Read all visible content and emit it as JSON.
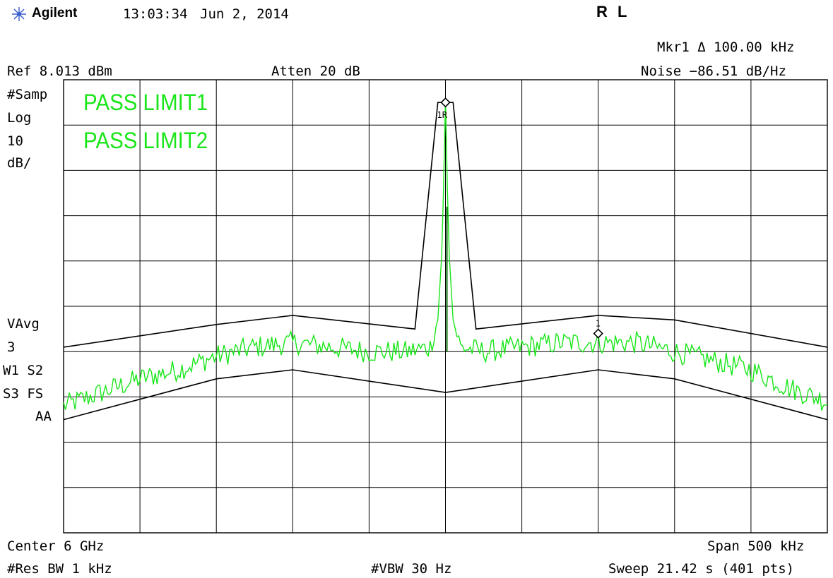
{
  "header": {
    "brand": "Agilent",
    "time": "13:03:34",
    "date": "Jun 2, 2014",
    "mode": "R L"
  },
  "marker": {
    "line1": "Mkr1 Δ  100.00 kHz",
    "line2": "Noise  −86.51 dB/Hz",
    "label_peak": "1R",
    "label_delta": "1"
  },
  "settings": {
    "ref": "Ref 8.013 dBm",
    "atten": "Atten 20 dB",
    "samp": "#Samp",
    "log": "Log",
    "scale_value": "10",
    "scale_unit": "dB/",
    "vavg": "VAvg",
    "vavg_count": "3",
    "w1s2": "W1  S2",
    "s3fs": "S3 FS",
    "aa": "AA"
  },
  "status": {
    "limit1": "PASS LIMIT1",
    "limit2": "PASS LIMIT2"
  },
  "footer": {
    "center": "Center 6 GHz",
    "span": "Span 500 kHz",
    "rbw": "#Res BW 1 kHz",
    "vbw": "#VBW 30 Hz",
    "sweep": "Sweep 21.42 s (401 pts)"
  },
  "colors": {
    "trace": "#19e619",
    "grid": "#000000",
    "limit_line": "#000000"
  },
  "chart_data": {
    "type": "line",
    "x_unit": "kHz offset from center",
    "xlim": [
      -250,
      250
    ],
    "y_unit": "dBm",
    "ylim": [
      -91.987,
      8.013
    ],
    "grid": true,
    "series": [
      {
        "name": "Trace",
        "x": [
          -250,
          -225,
          -200,
          -175,
          -150,
          -125,
          -100,
          -75,
          -50,
          -25,
          -10,
          -5,
          -2,
          0,
          2,
          5,
          10,
          25,
          50,
          75,
          100,
          125,
          150,
          175,
          200,
          225,
          250
        ],
        "y": [
          -64,
          -61,
          -58,
          -56,
          -53,
          -51,
          -50,
          -51,
          -52,
          -52,
          -51,
          -45,
          -28,
          4,
          -28,
          -45,
          -51,
          -52,
          -51,
          -50,
          -50,
          -50,
          -52,
          -54,
          -56,
          -60,
          -63
        ]
      },
      {
        "name": "Upper limit",
        "x": [
          -250,
          -150,
          -100,
          -20,
          -20,
          -5,
          0,
          5,
          20,
          20,
          100,
          150,
          250
        ],
        "y": [
          -51,
          -46,
          -44,
          -47,
          -47,
          3,
          3,
          3,
          -47,
          -47,
          -44,
          -45,
          -51
        ]
      },
      {
        "name": "Lower limit",
        "x": [
          -250,
          -150,
          -100,
          0,
          100,
          150,
          250
        ],
        "y": [
          -67,
          -58,
          -56,
          -61,
          -56,
          -58,
          -67
        ]
      }
    ],
    "markers": [
      {
        "name": "1R",
        "x": 0,
        "y": 3
      },
      {
        "name": "1",
        "x": 100,
        "y": -48
      }
    ]
  }
}
